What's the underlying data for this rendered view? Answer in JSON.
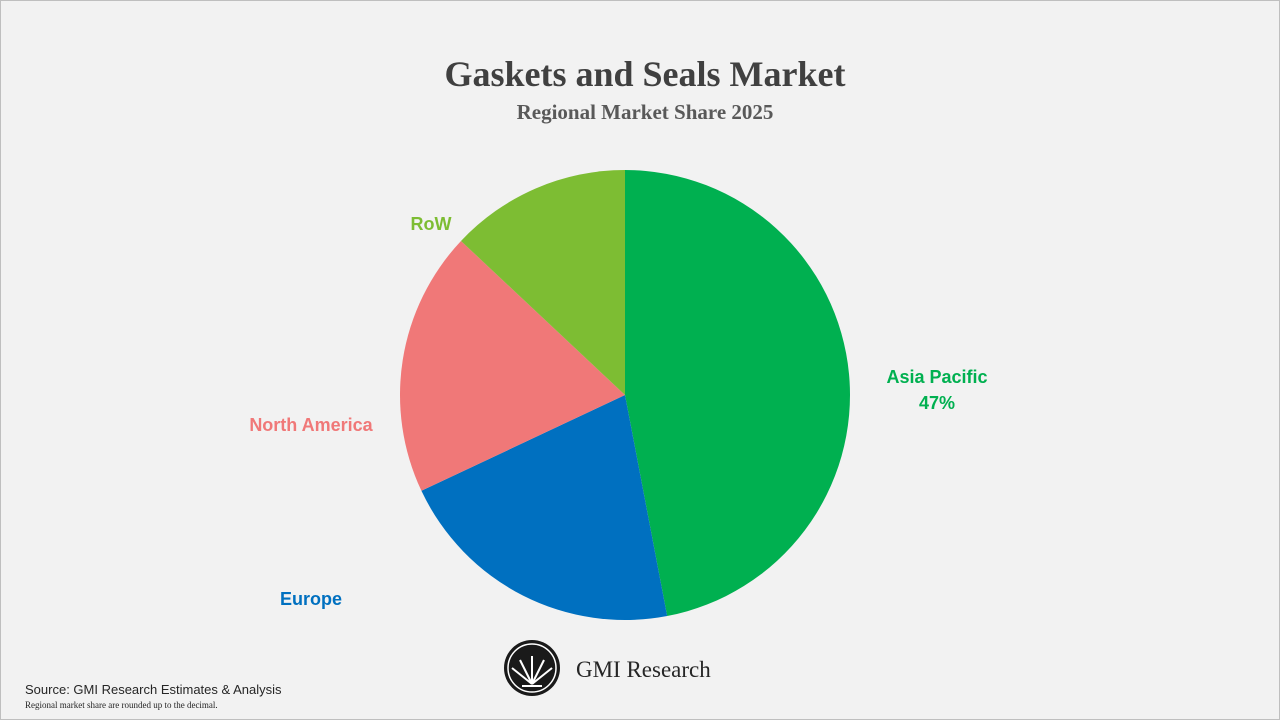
{
  "chart_data": {
    "type": "pie",
    "title": "Gaskets and Seals Market",
    "subtitle": "Regional Market Share 2025",
    "categories": [
      "Asia Pacific",
      "Europe",
      "North America",
      "RoW"
    ],
    "values": [
      47,
      21,
      19,
      13
    ],
    "value_labels": [
      "47%",
      null,
      null,
      null
    ],
    "colors": [
      "#00b050",
      "#0070c0",
      "#f07878",
      "#7dbd33"
    ]
  },
  "footer": {
    "brand": "GMI Research",
    "source": "Source: GMI Research Estimates & Analysis",
    "note": "Regional market share are rounded up to the decimal."
  }
}
